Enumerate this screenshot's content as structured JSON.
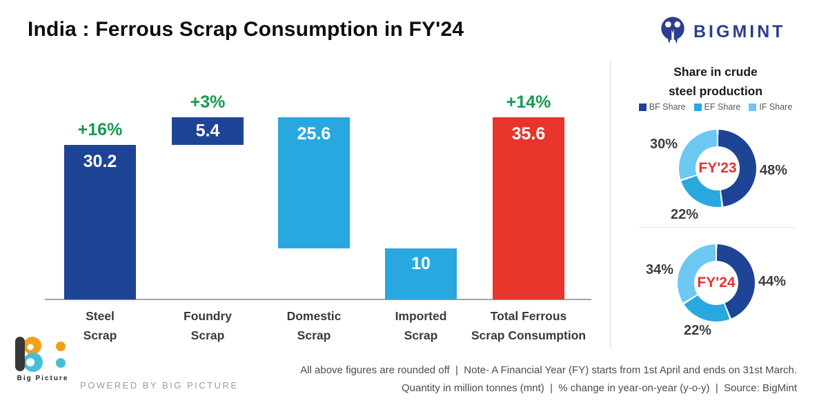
{
  "header": {
    "title": "India : Ferrous Scrap Consumption in FY'24",
    "brand": "BIGMINT"
  },
  "colors": {
    "dark_blue": "#1e4496",
    "mid_blue": "#29a8e0",
    "light_blue": "#6cc8f1",
    "red": "#e8352b",
    "green": "#169a4f",
    "brand_blue": "#2b3e92",
    "fy_red": "#e8312f",
    "orange": "#f0a11c",
    "teal": "#45bfd9",
    "axis_gray": "#a3a3a3"
  },
  "chart_data": [
    {
      "type": "bar",
      "subtype": "waterfall",
      "title": "India : Ferrous Scrap Consumption in FY'24",
      "unit": "million tonnes (mnt)",
      "ylim": [
        0,
        35.6
      ],
      "grid": false,
      "categories": [
        "Steel Scrap",
        "Foundry Scrap",
        "Domestic Scrap",
        "Imported Scrap",
        "Total Ferrous Scrap Consumption"
      ],
      "bars": [
        {
          "label_line1": "Steel",
          "label_line2": "Scrap",
          "value": 30.2,
          "base": 0,
          "display": "30.2",
          "growth": "+16%",
          "color_key": "dark_blue"
        },
        {
          "label_line1": "Foundry",
          "label_line2": "Scrap",
          "value": 5.4,
          "base": 30.2,
          "display": "5.4",
          "growth": "+3%",
          "color_key": "dark_blue"
        },
        {
          "label_line1": "Domestic",
          "label_line2": "Scrap",
          "value": 25.6,
          "base": 10,
          "display": "25.6",
          "growth": null,
          "color_key": "mid_blue"
        },
        {
          "label_line1": "Imported",
          "label_line2": "Scrap",
          "value": 10,
          "base": 0,
          "display": "10",
          "growth": null,
          "color_key": "mid_blue"
        },
        {
          "label_line1": "Total Ferrous",
          "label_line2": "Scrap Consumption",
          "value": 35.6,
          "base": 0,
          "display": "35.6",
          "growth": "+14%",
          "color_key": "red"
        }
      ]
    },
    {
      "type": "donut",
      "title": "Share in crude steel production",
      "title_line1": "Share in crude",
      "title_line2": "steel production",
      "legend_position": "top",
      "legend": [
        {
          "label": "BF Share",
          "color_key": "dark_blue"
        },
        {
          "label": "EF Share",
          "color_key": "mid_blue"
        },
        {
          "label": "IF Share",
          "color_key": "light_blue"
        }
      ],
      "donuts": [
        {
          "center_label": "FY'23",
          "slices": [
            {
              "name": "BF Share",
              "value": 48,
              "color_key": "dark_blue"
            },
            {
              "name": "EF Share",
              "value": 22,
              "color_key": "mid_blue"
            },
            {
              "name": "IF Share",
              "value": 30,
              "color_key": "light_blue"
            }
          ]
        },
        {
          "center_label": "FY'24",
          "slices": [
            {
              "name": "BF Share",
              "value": 44,
              "color_key": "dark_blue"
            },
            {
              "name": "EF Share",
              "value": 22,
              "color_key": "mid_blue"
            },
            {
              "name": "IF Share",
              "value": 34,
              "color_key": "light_blue"
            }
          ]
        }
      ]
    }
  ],
  "footer": {
    "logo_text": "Big Picture",
    "powered_by": "POWERED BY BIG PICTURE",
    "note_line1": "All above figures are rounded off  |  Note- A Financial Year (FY) starts from 1st April and ends on 31st March.",
    "note_line2": "Quantity in million tonnes (mnt)  |  % change in year-on-year (y-o-y)  |  Source: BigMint"
  }
}
